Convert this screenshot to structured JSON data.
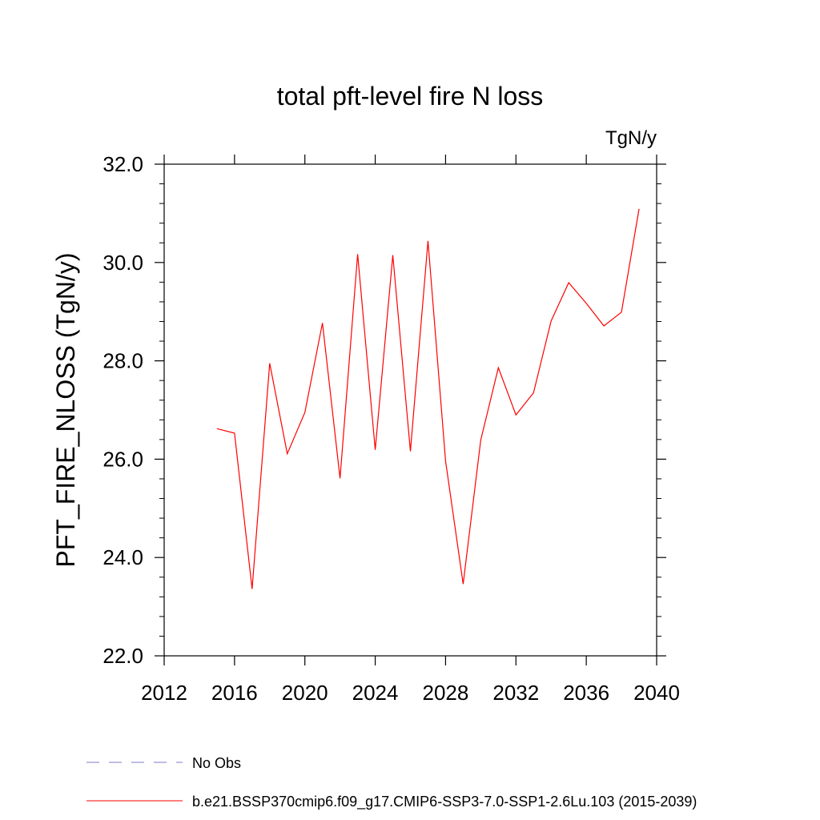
{
  "chart_data": {
    "type": "line",
    "title": "total pft-level fire N loss",
    "units_label": "TgN/y",
    "ylabel": "PFT_FIRE_NLOSS  (TgN/y)",
    "xlabel": "",
    "xlim": [
      2012,
      2040
    ],
    "ylim": [
      22.0,
      32.0
    ],
    "x_ticks": [
      2012,
      2016,
      2020,
      2024,
      2028,
      2032,
      2036,
      2040
    ],
    "x_tick_labels": [
      "2012",
      "2016",
      "2020",
      "2024",
      "2028",
      "2032",
      "2036",
      "2040"
    ],
    "y_ticks": [
      22.0,
      24.0,
      26.0,
      28.0,
      30.0,
      32.0
    ],
    "y_tick_labels": [
      "22.0",
      "24.0",
      "26.0",
      "28.0",
      "30.0",
      "32.0"
    ],
    "grid": false,
    "legend_position": "bottom",
    "series": [
      {
        "name": "b.e21.BSSP370cmip6.f09_g17.CMIP6-SSP3-7.0-SSP1-2.6Lu.103 (2015-2039)",
        "color": "#ff0000",
        "x": [
          2015,
          2016,
          2017,
          2018,
          2019,
          2020,
          2021,
          2022,
          2023,
          2024,
          2025,
          2026,
          2027,
          2028,
          2029,
          2030,
          2031,
          2032,
          2033,
          2034,
          2035,
          2036,
          2037,
          2038,
          2039
        ],
        "values": [
          26.62,
          26.53,
          23.36,
          27.95,
          26.11,
          26.95,
          28.77,
          25.61,
          30.17,
          26.19,
          30.15,
          26.16,
          30.44,
          25.96,
          23.46,
          26.39,
          27.86,
          26.9,
          27.35,
          28.81,
          29.59,
          29.17,
          28.71,
          28.99,
          31.09
        ]
      }
    ],
    "legend": [
      {
        "label": "No Obs",
        "style": "dashed",
        "color": "#7b7bc8"
      },
      {
        "label": "b.e21.BSSP370cmip6.f09_g17.CMIP6-SSP3-7.0-SSP1-2.6Lu.103 (2015-2039)",
        "style": "solid",
        "color": "#ff0000"
      }
    ]
  }
}
